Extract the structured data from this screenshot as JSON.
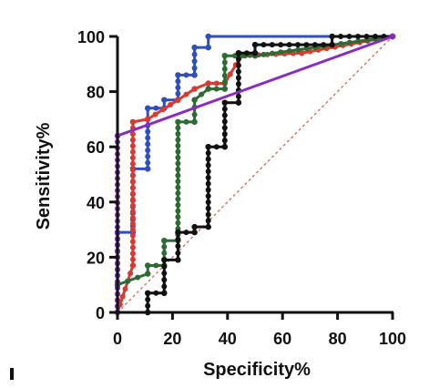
{
  "chart_data": {
    "type": "line",
    "title": "",
    "xlabel": "Specificity%",
    "ylabel": "Sensitivity%",
    "xlim": [
      0,
      100
    ],
    "ylim": [
      0,
      100
    ],
    "x_ticks": [
      "0",
      "20",
      "40",
      "60",
      "80",
      "100"
    ],
    "y_ticks": [
      "0",
      "20",
      "40",
      "60",
      "80",
      "100"
    ],
    "grid": false,
    "legend": "none",
    "reference_line": {
      "points": [
        [
          0,
          0
        ],
        [
          100,
          100
        ]
      ],
      "color": "#e07060",
      "style": "dotted"
    },
    "series": [
      {
        "color": "#2f4fbf",
        "points": [
          [
            0,
            0
          ],
          [
            0,
            29
          ],
          [
            5.6,
            29
          ],
          [
            5.6,
            52
          ],
          [
            11,
            52
          ],
          [
            11,
            70
          ],
          [
            11,
            74
          ],
          [
            17,
            74
          ],
          [
            17,
            77
          ],
          [
            22,
            77
          ],
          [
            22,
            86
          ],
          [
            28,
            86
          ],
          [
            28,
            96
          ],
          [
            33,
            96
          ],
          [
            33,
            100
          ],
          [
            100,
            100
          ]
        ]
      },
      {
        "color": "#d83a30",
        "points": [
          [
            0,
            0
          ],
          [
            5.6,
            17
          ],
          [
            5.6,
            69
          ],
          [
            11,
            70
          ],
          [
            22,
            77
          ],
          [
            28,
            81
          ],
          [
            33,
            83
          ],
          [
            39,
            83
          ],
          [
            45,
            93
          ],
          [
            67,
            94
          ],
          [
            100,
            100
          ]
        ]
      },
      {
        "color": "#2e6b34",
        "points": [
          [
            0,
            10
          ],
          [
            11,
            14
          ],
          [
            11,
            17
          ],
          [
            17,
            17
          ],
          [
            17,
            26
          ],
          [
            22,
            26
          ],
          [
            22,
            69
          ],
          [
            28,
            69
          ],
          [
            28,
            77
          ],
          [
            33,
            81
          ],
          [
            39,
            81
          ],
          [
            39,
            93
          ],
          [
            50,
            93
          ],
          [
            100,
            100
          ]
        ]
      },
      {
        "color": "#111111",
        "points": [
          [
            11,
            0
          ],
          [
            11,
            7
          ],
          [
            17,
            7
          ],
          [
            17,
            19
          ],
          [
            22,
            19
          ],
          [
            22,
            29
          ],
          [
            28,
            29
          ],
          [
            28,
            31
          ],
          [
            33,
            31
          ],
          [
            33,
            60
          ],
          [
            39,
            60
          ],
          [
            39,
            76
          ],
          [
            44,
            76
          ],
          [
            44,
            94
          ],
          [
            50,
            94
          ],
          [
            50,
            97
          ],
          [
            78,
            97
          ],
          [
            78,
            100
          ],
          [
            100,
            100
          ]
        ]
      },
      {
        "color": "#8a2bc4",
        "points": [
          [
            0,
            0
          ],
          [
            0,
            64
          ],
          [
            100,
            100
          ]
        ]
      }
    ]
  }
}
